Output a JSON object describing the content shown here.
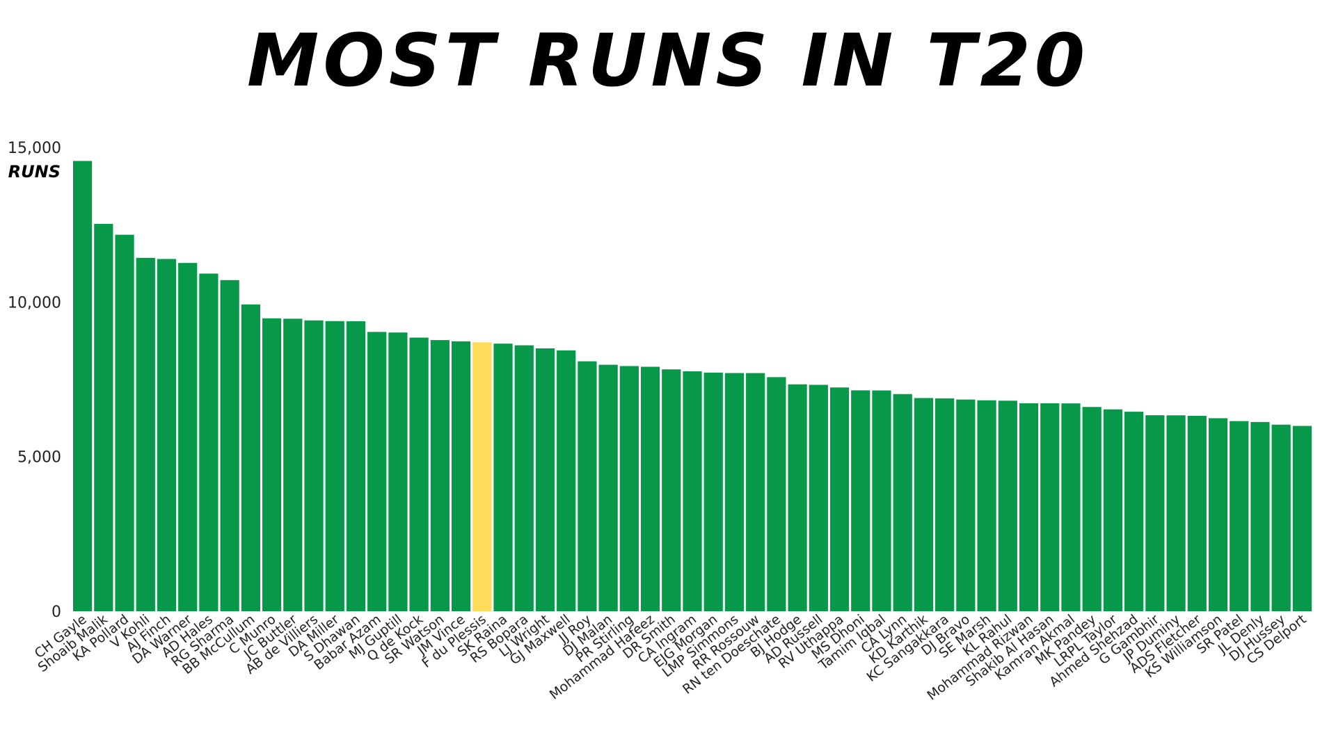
{
  "chart_data": {
    "type": "bar",
    "title": "Most runs in T20",
    "ylabel": "RUNS",
    "ylim": [
      0,
      15000
    ],
    "yticks": [
      {
        "value": 0,
        "label": "0"
      },
      {
        "value": 5000,
        "label": "5,000"
      },
      {
        "value": 10000,
        "label": "10,000"
      },
      {
        "value": 15000,
        "label": "15,000"
      }
    ],
    "grid": false,
    "bar_color": "#07984a",
    "highlight_color": "#fddc5c",
    "highlight_category": "F du Plessis",
    "categories": [
      "CH Gayle",
      "Shoaib Malik",
      "KA Pollard",
      "V Kohli",
      "AJ Finch",
      "DA Warner",
      "AD Hales",
      "RG Sharma",
      "BB McCullum",
      "C Munro",
      "JC Buttler",
      "AB de Villiers",
      "DA Miller",
      "S Dhawan",
      "Babar Azam",
      "MJ Guptill",
      "Q de Kock",
      "SR Watson",
      "JM Vince",
      "F du Plessis",
      "SK Raina",
      "RS Bopara",
      "LJ Wright",
      "GJ Maxwell",
      "JJ Roy",
      "DJ Malan",
      "PR Stirling",
      "Mohammad Hafeez",
      "DR Smith",
      "CA Ingram",
      "EJG Morgan",
      "LMP Simmons",
      "RR Rossouw",
      "RN ten Doeschate",
      "BJ Hodge",
      "AD Russell",
      "RV Uthappa",
      "MS Dhoni",
      "Tamim Iqbal",
      "CA Lynn",
      "KD Karthik",
      "KC Sangakkara",
      "DJ Bravo",
      "SE Marsh",
      "KL Rahul",
      "Mohammad Rizwan",
      "Shakib Al Hasan",
      "Kamran Akmal",
      "MK Pandey",
      "LRPL Taylor",
      "Ahmed Shehzad",
      "G Gambhir",
      "JP Duminy",
      "ADS Fletcher",
      "KS Williamson",
      "SR Patel",
      "JL Denly",
      "DJ Hussey",
      "CS Delport"
    ],
    "values": [
      14562,
      12528,
      12175,
      11429,
      11392,
      11263,
      10919,
      10709,
      9922,
      9473,
      9459,
      9406,
      9383,
      9379,
      9033,
      9013,
      8849,
      8769,
      8729,
      8697,
      8654,
      8600,
      8501,
      8436,
      8082,
      7971,
      7929,
      7906,
      7821,
      7759,
      7718,
      7703,
      7702,
      7571,
      7338,
      7322,
      7236,
      7143,
      7140,
      7023,
      6895,
      6885,
      6846,
      6822,
      6808,
      6726,
      6725,
      6721,
      6606,
      6528,
      6452,
      6339,
      6335,
      6320,
      6242,
      6149,
      6120,
      6034,
      5993
    ]
  }
}
